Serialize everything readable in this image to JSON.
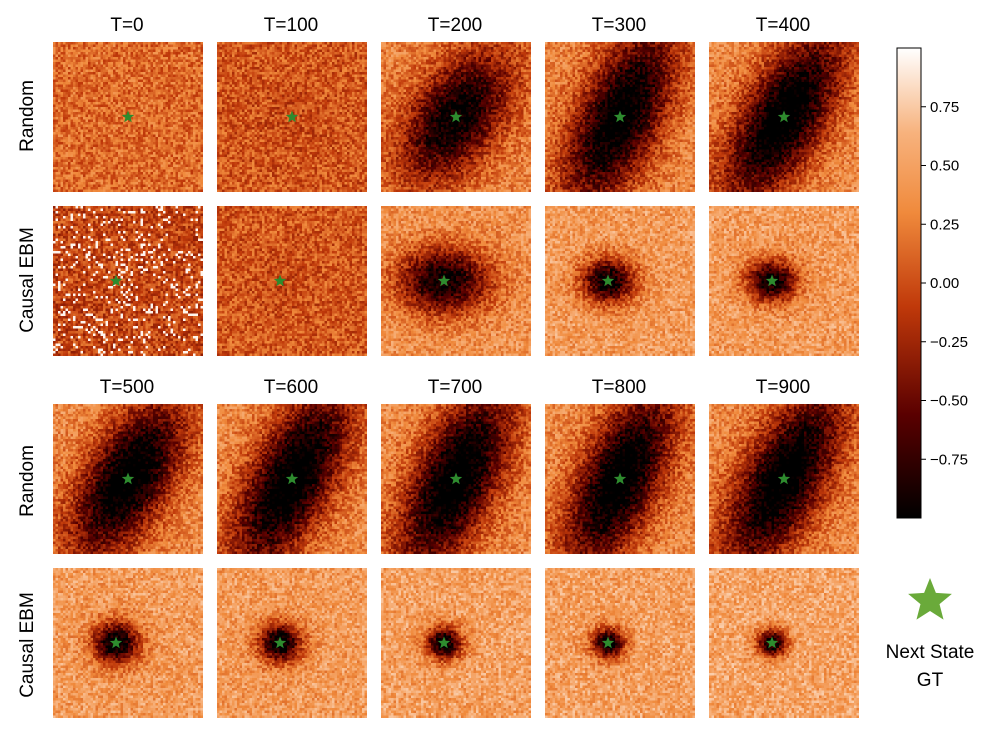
{
  "chart_data": {
    "type": "heatmap",
    "description_free": true,
    "row_labels": [
      "Random",
      "Causal EBM",
      "Random",
      "Causal EBM"
    ],
    "column_titles_top": [
      "T=0",
      "T=100",
      "T=200",
      "T=300",
      "T=400"
    ],
    "column_titles_bottom": [
      "T=500",
      "T=600",
      "T=700",
      "T=800",
      "T=900"
    ],
    "colorbar": {
      "range": [
        -1.0,
        1.0
      ],
      "ticks": [
        "0.75",
        "0.50",
        "0.25",
        "0.00",
        "−0.25",
        "−0.50",
        "−0.75"
      ],
      "tick_values": [
        0.75,
        0.5,
        0.25,
        0.0,
        -0.25,
        -0.5,
        -0.75
      ],
      "colormap": "gist_heat",
      "colors": [
        "#000000",
        "#5a0000",
        "#c0390a",
        "#f08a3c",
        "#f7b27d",
        "#ffffff"
      ]
    },
    "legend": {
      "label_line1": "Next State",
      "label_line2": "GT",
      "marker": "star",
      "marker_color": "#6aaa3a"
    },
    "star_color": "#2e8b2e",
    "panels": [
      {
        "row": 0,
        "col": 0,
        "time": "T=0",
        "method": "Random",
        "mean": 0.15,
        "dip_depth": 0.0,
        "dip_size": 0.2,
        "elongation": 1.0,
        "angle": -60,
        "star_x": 0.5,
        "star_y": 0.5,
        "white_speckles": 0.0
      },
      {
        "row": 0,
        "col": 1,
        "time": "T=100",
        "method": "Random",
        "mean": 0.05,
        "dip_depth": 0.05,
        "dip_size": 0.2,
        "elongation": 1.0,
        "angle": -60,
        "star_x": 0.5,
        "star_y": 0.5,
        "white_speckles": 0.0
      },
      {
        "row": 0,
        "col": 2,
        "time": "T=200",
        "method": "Random",
        "mean": 0.3,
        "dip_depth": 0.85,
        "dip_size": 0.28,
        "elongation": 1.8,
        "angle": -55,
        "star_x": 0.5,
        "star_y": 0.5,
        "white_speckles": 0.0
      },
      {
        "row": 0,
        "col": 3,
        "time": "T=300",
        "method": "Random",
        "mean": 0.32,
        "dip_depth": 0.95,
        "dip_size": 0.27,
        "elongation": 2.4,
        "angle": -65,
        "star_x": 0.5,
        "star_y": 0.5,
        "white_speckles": 0.0
      },
      {
        "row": 0,
        "col": 4,
        "time": "T=400",
        "method": "Random",
        "mean": 0.35,
        "dip_depth": 1.0,
        "dip_size": 0.27,
        "elongation": 2.4,
        "angle": -60,
        "star_x": 0.5,
        "star_y": 0.5,
        "white_speckles": 0.0
      },
      {
        "row": 1,
        "col": 0,
        "time": "T=0",
        "method": "Causal EBM",
        "mean": -0.05,
        "dip_depth": 0.0,
        "dip_size": 0.2,
        "elongation": 1.0,
        "angle": 0,
        "star_x": 0.42,
        "star_y": 0.5,
        "white_speckles": 0.12
      },
      {
        "row": 1,
        "col": 1,
        "time": "T=100",
        "method": "Causal EBM",
        "mean": 0.05,
        "dip_depth": 0.05,
        "dip_size": 0.2,
        "elongation": 1.0,
        "angle": 0,
        "star_x": 0.42,
        "star_y": 0.5,
        "white_speckles": 0.0
      },
      {
        "row": 1,
        "col": 2,
        "time": "T=200",
        "method": "Causal EBM",
        "mean": 0.4,
        "dip_depth": 0.9,
        "dip_size": 0.22,
        "elongation": 1.4,
        "angle": 0,
        "star_x": 0.42,
        "star_y": 0.5,
        "white_speckles": 0.0
      },
      {
        "row": 1,
        "col": 3,
        "time": "T=300",
        "method": "Causal EBM",
        "mean": 0.45,
        "dip_depth": 0.95,
        "dip_size": 0.15,
        "elongation": 1.2,
        "angle": 0,
        "star_x": 0.42,
        "star_y": 0.5,
        "white_speckles": 0.0
      },
      {
        "row": 1,
        "col": 4,
        "time": "T=400",
        "method": "Causal EBM",
        "mean": 0.45,
        "dip_depth": 0.95,
        "dip_size": 0.14,
        "elongation": 1.2,
        "angle": 0,
        "star_x": 0.42,
        "star_y": 0.5,
        "white_speckles": 0.0
      },
      {
        "row": 2,
        "col": 0,
        "time": "T=500",
        "method": "Random",
        "mean": 0.35,
        "dip_depth": 1.0,
        "dip_size": 0.27,
        "elongation": 2.2,
        "angle": -60,
        "star_x": 0.5,
        "star_y": 0.5,
        "white_speckles": 0.0
      },
      {
        "row": 2,
        "col": 1,
        "time": "T=600",
        "method": "Random",
        "mean": 0.35,
        "dip_depth": 1.0,
        "dip_size": 0.27,
        "elongation": 2.5,
        "angle": -62,
        "star_x": 0.5,
        "star_y": 0.5,
        "white_speckles": 0.0
      },
      {
        "row": 2,
        "col": 2,
        "time": "T=700",
        "method": "Random",
        "mean": 0.35,
        "dip_depth": 1.0,
        "dip_size": 0.27,
        "elongation": 2.5,
        "angle": -65,
        "star_x": 0.5,
        "star_y": 0.5,
        "white_speckles": 0.0
      },
      {
        "row": 2,
        "col": 3,
        "time": "T=800",
        "method": "Random",
        "mean": 0.35,
        "dip_depth": 1.0,
        "dip_size": 0.26,
        "elongation": 2.5,
        "angle": -65,
        "star_x": 0.5,
        "star_y": 0.5,
        "white_speckles": 0.0
      },
      {
        "row": 2,
        "col": 4,
        "time": "T=900",
        "method": "Random",
        "mean": 0.35,
        "dip_depth": 1.0,
        "dip_size": 0.27,
        "elongation": 2.5,
        "angle": -62,
        "star_x": 0.5,
        "star_y": 0.5,
        "white_speckles": 0.0
      },
      {
        "row": 3,
        "col": 0,
        "time": "T=500",
        "method": "Causal EBM",
        "mean": 0.45,
        "dip_depth": 1.0,
        "dip_size": 0.14,
        "elongation": 1.1,
        "angle": 0,
        "star_x": 0.42,
        "star_y": 0.5,
        "white_speckles": 0.0
      },
      {
        "row": 3,
        "col": 1,
        "time": "T=600",
        "method": "Causal EBM",
        "mean": 0.45,
        "dip_depth": 1.0,
        "dip_size": 0.13,
        "elongation": 1.1,
        "angle": 0,
        "star_x": 0.42,
        "star_y": 0.5,
        "white_speckles": 0.0
      },
      {
        "row": 3,
        "col": 2,
        "time": "T=700",
        "method": "Causal EBM",
        "mean": 0.48,
        "dip_depth": 1.0,
        "dip_size": 0.11,
        "elongation": 1.1,
        "angle": 0,
        "star_x": 0.42,
        "star_y": 0.5,
        "white_speckles": 0.0
      },
      {
        "row": 3,
        "col": 3,
        "time": "T=800",
        "method": "Causal EBM",
        "mean": 0.48,
        "dip_depth": 1.0,
        "dip_size": 0.1,
        "elongation": 1.1,
        "angle": 0,
        "star_x": 0.42,
        "star_y": 0.5,
        "white_speckles": 0.0
      },
      {
        "row": 3,
        "col": 4,
        "time": "T=900",
        "method": "Causal EBM",
        "mean": 0.5,
        "dip_depth": 1.0,
        "dip_size": 0.09,
        "elongation": 1.1,
        "angle": 0,
        "star_x": 0.42,
        "star_y": 0.5,
        "white_speckles": 0.0
      }
    ]
  }
}
